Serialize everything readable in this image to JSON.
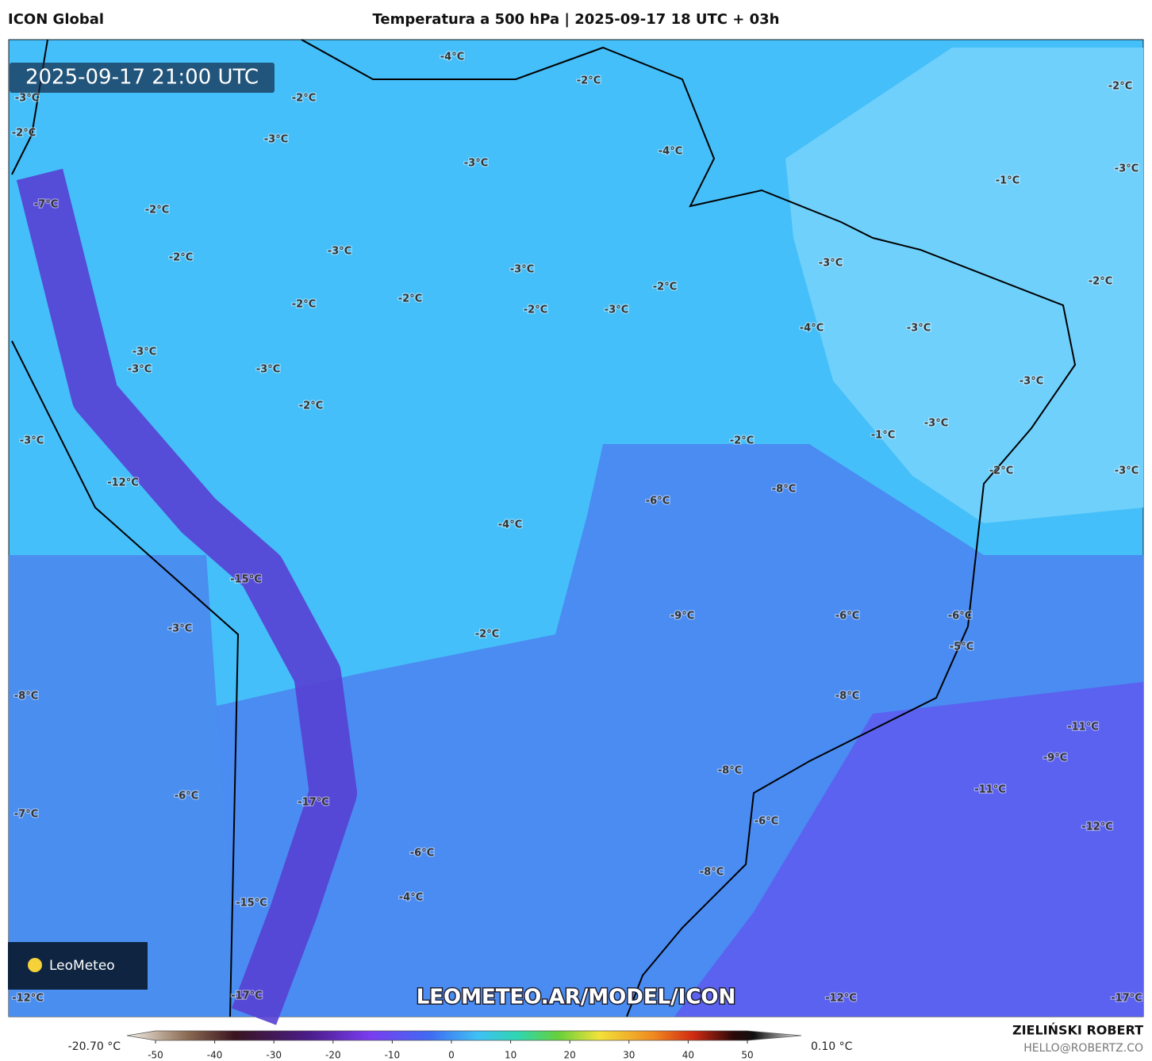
{
  "header": {
    "model": "ICON Global",
    "title": "Temperatura a 500 hPa | 2025-09-17 18 UTC + 03h"
  },
  "map": {
    "valid_time": "2025-09-17 21:00 UTC",
    "watermark": "LEOMETEO.AR/MODEL/ICON",
    "logo": "LeoMeteo",
    "labels": [
      "-4°C",
      "-2°C",
      "-2°C",
      "-3°C",
      "-2°C",
      "-2°C",
      "-3°C",
      "-4°C",
      "-3°C",
      "-3°C",
      "-1°C",
      "-7°C",
      "-2°C",
      "-3°C",
      "-2°C",
      "-3°C",
      "-3°C",
      "-2°C",
      "-2°C",
      "-2°C",
      "-2°C",
      "-2°C",
      "-3°C",
      "-4°C",
      "-3°C",
      "-3°C",
      "-3°C",
      "-3°C",
      "-3°C",
      "-2°C",
      "-3°C",
      "-1°C",
      "-3°C",
      "-2°C",
      "-3°C",
      "-2°C",
      "-12°C",
      "-8°C",
      "-6°C",
      "-4°C",
      "-15°C",
      "-9°C",
      "-6°C",
      "-6°C",
      "-3°C",
      "-2°C",
      "-5°C",
      "-8°C",
      "-8°C",
      "-11°C",
      "-9°C",
      "-8°C",
      "-11°C",
      "-6°C",
      "-17°C",
      "-7°C",
      "-6°C",
      "-12°C",
      "-6°C",
      "-8°C",
      "-4°C",
      "-15°C",
      "-17°C",
      "-12°C",
      "-12°C",
      "-17°C"
    ]
  },
  "colorbar": {
    "min_label": "-20.70 °C",
    "max_label": "0.10 °C",
    "ticks": [
      -50,
      -40,
      -30,
      -20,
      -10,
      0,
      10,
      20,
      30,
      40,
      50
    ]
  },
  "footer": {
    "author": "ZIELIŃSKI ROBERT",
    "email": "HELLO@ROBERTZ.CO"
  }
}
